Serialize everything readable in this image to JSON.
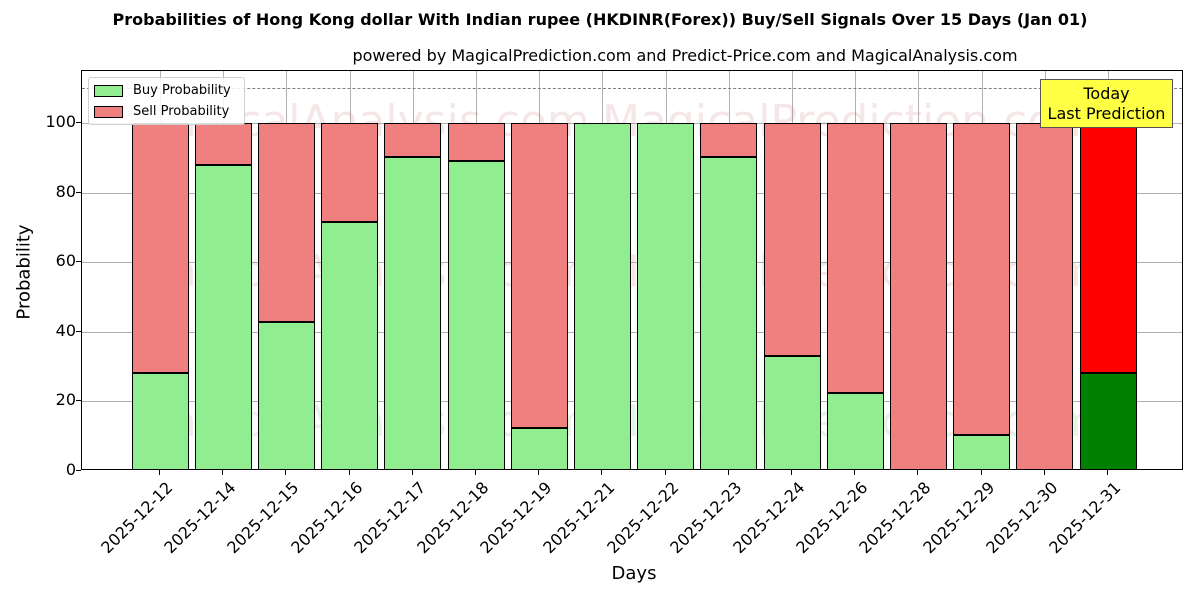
{
  "title": "Probabilities of Hong Kong dollar With Indian rupee (HKDINR(Forex)) Buy/Sell Signals Over 15 Days (Jan 01)",
  "subtitle": "powered by MagicalPrediction.com and Predict-Price.com and MagicalAnalysis.com",
  "legend": {
    "buy": "Buy Probability",
    "sell": "Sell Probability"
  },
  "annotation": {
    "line1": "Today",
    "line2": "Last Prediction"
  },
  "watermarks": [
    "MagicalAnalysis.com",
    "MagicalPrediction.com"
  ],
  "colors": {
    "buy": "#90ee90",
    "sell": "#f08080",
    "today_buy": "#008000",
    "today_sell": "#ff0000",
    "annotation_bg": "#ffff44"
  },
  "chart_data": {
    "type": "bar",
    "stacked": true,
    "title": "Probabilities of Hong Kong dollar With Indian rupee (HKDINR(Forex)) Buy/Sell Signals Over 15 Days (Jan 01)",
    "subtitle": "powered by MagicalPrediction.com and Predict-Price.com and MagicalAnalysis.com",
    "xlabel": "Days",
    "ylabel": "Probability",
    "ylim": [
      0,
      115
    ],
    "yticks": [
      0,
      20,
      40,
      60,
      80,
      100
    ],
    "grid": true,
    "legend_position": "upper left",
    "reference_line": {
      "y": 110,
      "style": "dashed"
    },
    "categories": [
      "2025-12-12",
      "2025-12-14",
      "2025-12-15",
      "2025-12-16",
      "2025-12-17",
      "2025-12-18",
      "2025-12-19",
      "2025-12-21",
      "2025-12-22",
      "2025-12-23",
      "2025-12-24",
      "2025-12-26",
      "2025-12-28",
      "2025-12-29",
      "2025-12-30",
      "2025-12-31"
    ],
    "series": [
      {
        "name": "Buy Probability",
        "values": [
          28.3,
          87.9,
          42.8,
          71.7,
          90.2,
          89.0,
          12.4,
          100,
          100,
          90.2,
          33.2,
          22.3,
          0,
          10.4,
          0,
          28.3
        ]
      },
      {
        "name": "Sell Probability",
        "values": [
          71.7,
          12.1,
          57.2,
          28.3,
          9.8,
          11.0,
          87.6,
          0,
          0,
          9.8,
          66.8,
          77.7,
          100,
          89.6,
          100,
          71.7
        ]
      }
    ],
    "annotations": [
      {
        "text": "Today\nLast Prediction",
        "x": "2025-12-31"
      }
    ]
  }
}
